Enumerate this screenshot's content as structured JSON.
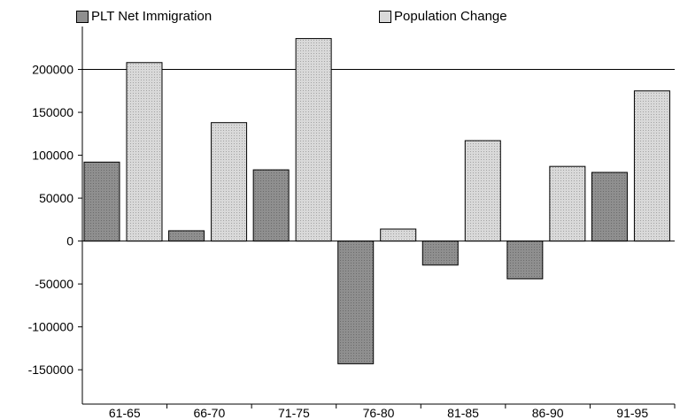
{
  "chart_data": {
    "type": "bar",
    "categories": [
      "61-65",
      "66-70",
      "71-75",
      "76-80",
      "81-85",
      "86-90",
      "91-95"
    ],
    "series": [
      {
        "name": "PLT Net Immigration",
        "color": "#8f8f8f",
        "values": [
          92000,
          12000,
          83000,
          -143000,
          -28000,
          -44000,
          80000
        ]
      },
      {
        "name": "Population Change",
        "color": "#d9d9d9",
        "values": [
          208000,
          138000,
          236000,
          14000,
          117000,
          87000,
          175000
        ]
      }
    ],
    "yticks": [
      -150000,
      -100000,
      -50000,
      0,
      50000,
      100000,
      150000,
      200000
    ],
    "ytick_labels": [
      "-150000",
      "-100000",
      "-50000",
      "0",
      "50000",
      "100000",
      "150000",
      "200000"
    ],
    "ylim": [
      -190000,
      250000
    ],
    "gridlines": [
      200000
    ],
    "legend_position": "top",
    "title": "",
    "xlabel": "",
    "ylabel": ""
  }
}
